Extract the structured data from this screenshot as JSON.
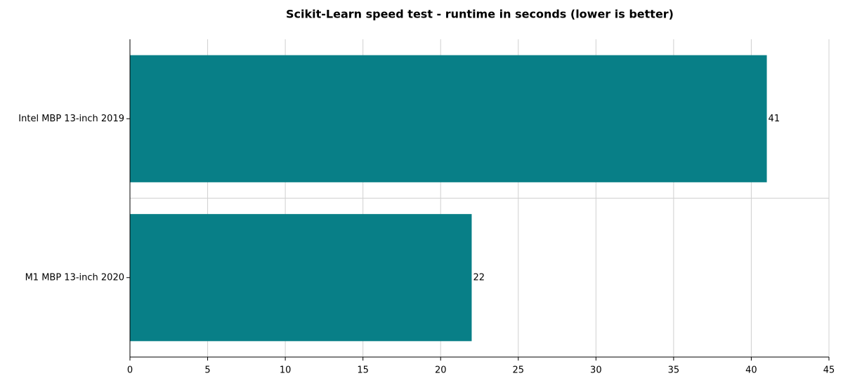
{
  "chart_data": {
    "type": "barh",
    "title": "Scikit-Learn speed test - runtime in seconds (lower is better)",
    "categories": [
      "Intel MBP 13-inch 2019",
      "M1 MBP 13-inch 2020"
    ],
    "values": [
      41,
      22
    ],
    "color": "#087f87",
    "xlim": [
      0,
      45
    ],
    "xticks": [
      0,
      5,
      10,
      15,
      20,
      25,
      30,
      35,
      40,
      45
    ],
    "grid": true
  }
}
